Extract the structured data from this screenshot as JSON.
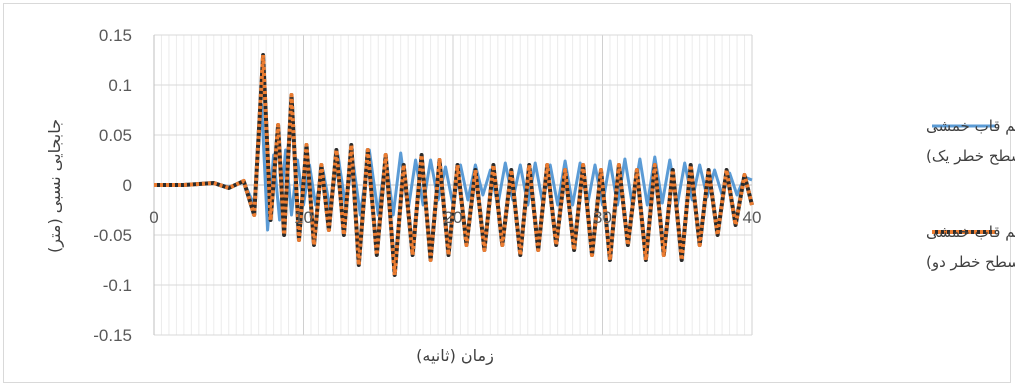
{
  "chart_data": {
    "type": "line",
    "title": "",
    "xlabel": "زمان (ثانیه)",
    "ylabel": "جابجایی نسبی (متر)",
    "xlim": [
      0,
      40
    ],
    "ylim": [
      -0.15,
      0.15
    ],
    "x_ticks": [
      0,
      10,
      20,
      30,
      40
    ],
    "y_ticks": [
      0.15,
      0.1,
      0.05,
      0,
      -0.05,
      -0.1,
      -0.15
    ],
    "y_tick_labels": [
      "0.15",
      "0.1",
      "0.05",
      "0",
      "-0.05",
      "-0.1",
      "-0.15"
    ],
    "x_tick_labels": [
      "0",
      "10",
      "20",
      "30",
      "40"
    ],
    "grid": true,
    "legend_position": "right",
    "series": [
      {
        "name": "سیستم قاب خمشی (سطح خطر یک)",
        "name_lines": [
          "سیستم قاب خمشی",
          "(سطح خطر یک)"
        ],
        "color": "#5b9bd5",
        "style": "solid",
        "x": [
          0,
          2,
          4,
          5,
          6,
          6.7,
          7.2,
          7.6,
          8.0,
          8.4,
          8.8,
          9.2,
          9.6,
          10.0,
          10.4,
          10.8,
          11.3,
          11.8,
          12.3,
          12.8,
          13.3,
          13.8,
          14.4,
          15.0,
          15.5,
          16.0,
          16.5,
          17.0,
          17.5,
          18.0,
          18.5,
          19.0,
          19.5,
          20.0,
          20.5,
          21.0,
          21.5,
          22.0,
          22.5,
          23.0,
          23.5,
          24.0,
          24.5,
          25.0,
          25.5,
          26.0,
          26.5,
          27.0,
          27.5,
          28.0,
          28.5,
          29.0,
          29.5,
          30.0,
          30.5,
          31.0,
          31.5,
          32.0,
          32.5,
          33.0,
          33.5,
          34.0,
          34.5,
          35.0,
          35.5,
          36.0,
          36.5,
          37.0,
          37.5,
          38.0,
          38.5,
          39.0,
          39.5,
          40.0
        ],
        "y": [
          0,
          0,
          0.002,
          -0.002,
          0.003,
          -0.02,
          0.08,
          -0.045,
          0.03,
          -0.035,
          0.035,
          -0.03,
          0.025,
          -0.02,
          0.02,
          -0.02,
          0.015,
          -0.025,
          0.03,
          -0.02,
          0.025,
          -0.03,
          0.035,
          -0.03,
          0.03,
          -0.03,
          0.032,
          -0.025,
          0.025,
          -0.02,
          0.025,
          -0.015,
          0.018,
          -0.02,
          0.02,
          -0.015,
          0.02,
          -0.01,
          0.015,
          -0.02,
          0.022,
          -0.015,
          0.02,
          -0.02,
          0.022,
          -0.018,
          0.02,
          -0.02,
          0.024,
          -0.02,
          0.022,
          -0.02,
          0.02,
          -0.02,
          0.024,
          -0.02,
          0.026,
          -0.02,
          0.026,
          -0.02,
          0.028,
          -0.018,
          0.025,
          -0.02,
          0.022,
          -0.015,
          0.02,
          -0.012,
          0.015,
          -0.01,
          0.012,
          -0.01,
          0.008,
          0.005
        ]
      },
      {
        "name": "سیستم قاب خمشی (سطح خطر دو)",
        "name_lines": [
          "سیستم قاب خمشی",
          "(سطح خطر دو)"
        ],
        "color": "#2b2b2b",
        "dash_color": "#ed7d31",
        "style": "dashed",
        "x": [
          0,
          2,
          4,
          5,
          6,
          6.7,
          7.3,
          7.8,
          8.3,
          8.7,
          9.2,
          9.7,
          10.2,
          10.7,
          11.2,
          11.7,
          12.2,
          12.7,
          13.2,
          13.7,
          14.3,
          14.9,
          15.5,
          16.1,
          16.7,
          17.3,
          17.9,
          18.5,
          19.1,
          19.7,
          20.3,
          20.9,
          21.5,
          22.1,
          22.7,
          23.3,
          23.9,
          24.5,
          25.1,
          25.7,
          26.3,
          26.9,
          27.5,
          28.1,
          28.7,
          29.3,
          29.9,
          30.5,
          31.1,
          31.7,
          32.3,
          32.9,
          33.5,
          34.1,
          34.7,
          35.3,
          35.9,
          36.5,
          37.1,
          37.7,
          38.3,
          38.9,
          39.5,
          40.0
        ],
        "y": [
          0,
          0,
          0.002,
          -0.003,
          0.004,
          -0.03,
          0.13,
          -0.035,
          0.06,
          -0.05,
          0.09,
          -0.055,
          0.04,
          -0.06,
          0.02,
          -0.045,
          0.035,
          -0.05,
          0.04,
          -0.08,
          0.035,
          -0.07,
          0.03,
          -0.09,
          0.02,
          -0.07,
          0.03,
          -0.075,
          0.025,
          -0.07,
          0.02,
          -0.06,
          0.015,
          -0.065,
          0.02,
          -0.06,
          0.015,
          -0.07,
          0.02,
          -0.065,
          0.02,
          -0.06,
          0.015,
          -0.065,
          0.02,
          -0.07,
          0.015,
          -0.075,
          0.02,
          -0.06,
          0.015,
          -0.075,
          0.02,
          -0.07,
          0.015,
          -0.075,
          0.02,
          -0.06,
          0.015,
          -0.05,
          0.015,
          -0.04,
          0.01,
          -0.02
        ]
      }
    ]
  }
}
